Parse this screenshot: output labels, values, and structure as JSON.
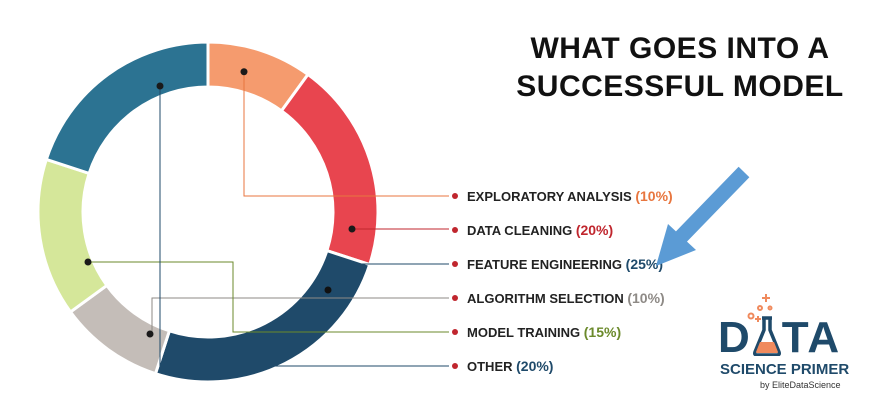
{
  "title": {
    "line1": "WHAT GOES INTO A",
    "line2": "SUCCESSFUL MODEL"
  },
  "chart_data": {
    "type": "pie",
    "style": "donut",
    "title": "WHAT GOES INTO A SUCCESSFUL MODEL",
    "slices": [
      {
        "label": "EXPLORATORY ANALYSIS",
        "value_label": "(10%)",
        "value": 10,
        "color": "#f59b6e",
        "label_color": "#e8763f"
      },
      {
        "label": "DATA CLEANING",
        "value_label": "(20%)",
        "value": 20,
        "color": "#e8454f",
        "label_color": "#c0262e"
      },
      {
        "label": "FEATURE ENGINEERING",
        "value_label": "(25%)",
        "value": 25,
        "color": "#1f4a6a",
        "label_color": "#1f4a6a"
      },
      {
        "label": "ALGORITHM SELECTION",
        "value_label": "(10%)",
        "value": 10,
        "color": "#c4bdb8",
        "label_color": "#8e8a86"
      },
      {
        "label": "MODEL TRAINING",
        "value_label": "(15%)",
        "value": 15,
        "color": "#d5e79a",
        "label_color": "#6b8a2b"
      },
      {
        "label": "OTHER",
        "value_label": "(20%)",
        "value": 20,
        "color": "#2c7392",
        "label_color": "#1f4a6a"
      }
    ],
    "legend_placement": "right"
  },
  "arrow": {
    "color": "#5b9bd5"
  },
  "logo": {
    "word_left": "D",
    "word_right": "TA",
    "subtitle": "SCIENCE PRIMER",
    "byline": "by EliteDataScience",
    "color": "#1f4a6a",
    "accent": "#f08a5d"
  }
}
